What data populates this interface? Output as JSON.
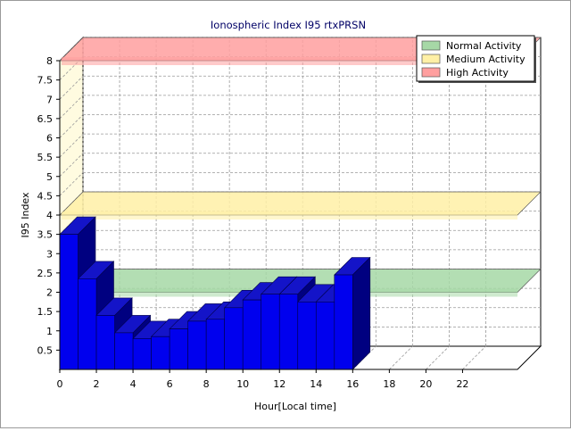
{
  "chart_data": {
    "type": "bar",
    "title": "Ionospheric Index I95 rtxPRSN",
    "xlabel": "Hour[Local time]",
    "ylabel": "I95 Index",
    "x_ticks": [
      "0",
      "2",
      "4",
      "6",
      "8",
      "10",
      "12",
      "14",
      "16",
      "18",
      "20",
      "22"
    ],
    "y_ticks": [
      "0.5",
      "1",
      "1.5",
      "2",
      "2.5",
      "3",
      "3.5",
      "4",
      "4.5",
      "5",
      "5.5",
      "6",
      "6.5",
      "7",
      "7.5",
      "8"
    ],
    "xlim": [
      0,
      25
    ],
    "ylim": [
      0,
      8
    ],
    "bar_color": "#0000ee",
    "hours": [
      0,
      1,
      2,
      3,
      4,
      5,
      6,
      7,
      8,
      9,
      10,
      11,
      12,
      13,
      14,
      15
    ],
    "values": [
      3.5,
      2.35,
      1.4,
      0.95,
      0.8,
      0.85,
      1.05,
      1.25,
      1.3,
      1.6,
      1.8,
      1.95,
      1.95,
      1.75,
      1.75,
      2.45
    ],
    "bands": [
      {
        "name": "Normal Activity",
        "value": 2,
        "color": "#a6d8a6"
      },
      {
        "name": "Medium Activity",
        "value": 4,
        "color": "#fff0a6"
      },
      {
        "name": "High Activity",
        "value": 8,
        "color": "#ff9f9f"
      }
    ],
    "legend": "top-right",
    "grid": true
  }
}
